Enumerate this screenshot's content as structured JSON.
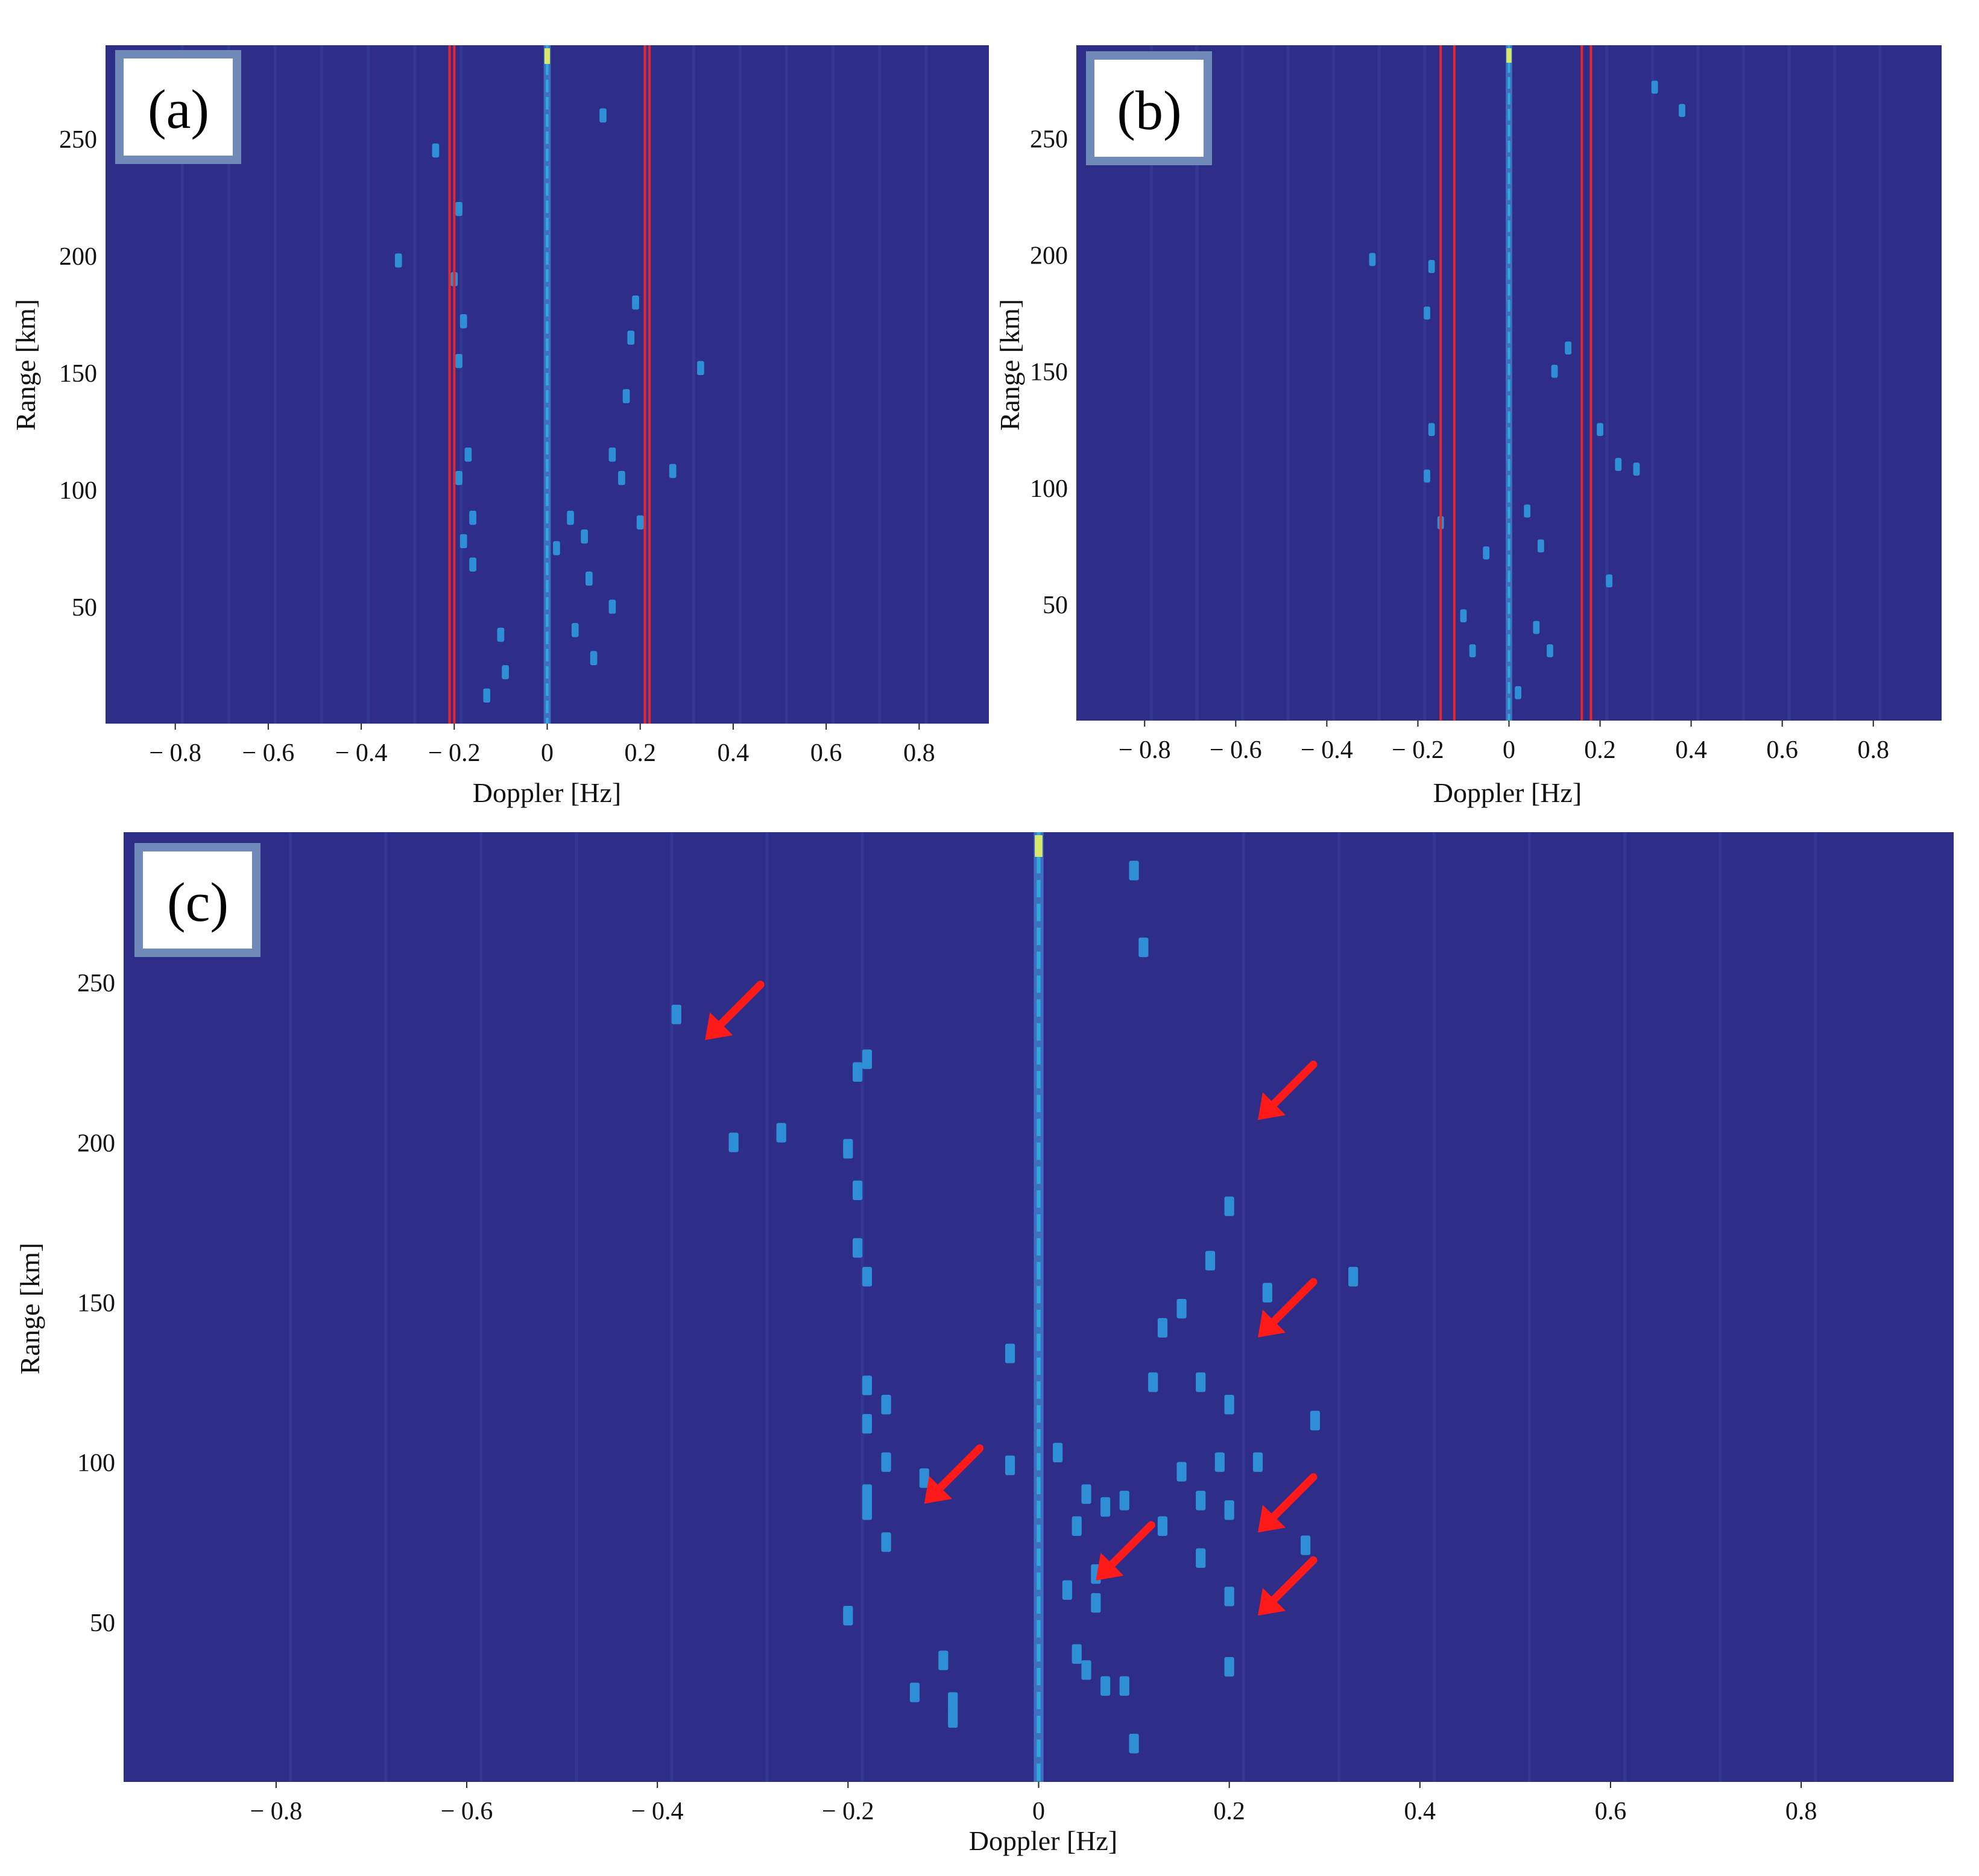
{
  "colors": {
    "background": "#2e2e88",
    "band_line": "#e8252b",
    "arrow": "#ff1a1a",
    "label_border": "#6f89b8",
    "zero_line": "#2ea9d9"
  },
  "chart_data": [
    {
      "type": "heatmap",
      "panel_label": "(a)",
      "xlabel": "Doppler [Hz]",
      "ylabel": "Range [km]",
      "xlim": [
        -0.95,
        0.95
      ],
      "ylim": [
        0,
        290
      ],
      "xticks": [
        -0.8,
        -0.6,
        -0.4,
        -0.2,
        0,
        0.2,
        0.4,
        0.6,
        0.8
      ],
      "xtick_labels": [
        "− 0.8",
        "− 0.6",
        "− 0.4",
        "− 0.2",
        "0",
        "0.2",
        "0.4",
        "0.6",
        "0.8"
      ],
      "yticks": [
        50,
        100,
        150,
        200,
        250
      ],
      "ytick_labels": [
        "50",
        "100",
        "150",
        "200",
        "250"
      ],
      "band_lines": [
        -0.21,
        -0.2,
        0.21,
        0.22
      ],
      "zero_line": 0,
      "spots": [
        [
          -0.19,
          220
        ],
        [
          -0.2,
          190
        ],
        [
          -0.18,
          172
        ],
        [
          -0.19,
          155
        ],
        [
          -0.17,
          115
        ],
        [
          -0.19,
          105
        ],
        [
          -0.16,
          88
        ],
        [
          -0.18,
          78
        ],
        [
          -0.16,
          68
        ],
        [
          -0.1,
          38
        ],
        [
          -0.09,
          22
        ],
        [
          -0.13,
          12
        ],
        [
          0.02,
          75
        ],
        [
          0.05,
          88
        ],
        [
          0.08,
          80
        ],
        [
          0.09,
          62
        ],
        [
          0.06,
          40
        ],
        [
          0.1,
          28
        ],
        [
          0.14,
          115
        ],
        [
          0.16,
          105
        ],
        [
          0.17,
          140
        ],
        [
          0.18,
          165
        ],
        [
          0.19,
          180
        ],
        [
          0.27,
          108
        ],
        [
          0.33,
          152
        ],
        [
          -0.32,
          198
        ],
        [
          0.12,
          260
        ],
        [
          -0.24,
          245
        ],
        [
          0.2,
          86
        ],
        [
          0.14,
          50
        ]
      ],
      "arrows": []
    },
    {
      "type": "heatmap",
      "panel_label": "(b)",
      "xlabel": "Doppler [Hz]",
      "ylabel": "Range [km]",
      "xlim": [
        -0.95,
        0.95
      ],
      "ylim": [
        0,
        290
      ],
      "xticks": [
        -0.8,
        -0.6,
        -0.4,
        -0.2,
        0,
        0.2,
        0.4,
        0.6,
        0.8
      ],
      "xtick_labels": [
        "− 0.8",
        "− 0.6",
        "− 0.4",
        "− 0.2",
        "0",
        "0.2",
        "0.4",
        "0.6",
        "0.8"
      ],
      "yticks": [
        50,
        100,
        150,
        200,
        250
      ],
      "ytick_labels": [
        "50",
        "100",
        "150",
        "200",
        "250"
      ],
      "band_lines": [
        -0.15,
        -0.12,
        0.16,
        0.18
      ],
      "zero_line": 0,
      "spots": [
        [
          -0.17,
          195
        ],
        [
          -0.18,
          175
        ],
        [
          -0.17,
          125
        ],
        [
          -0.18,
          105
        ],
        [
          -0.15,
          85
        ],
        [
          -0.1,
          45
        ],
        [
          -0.08,
          30
        ],
        [
          0.04,
          90
        ],
        [
          0.07,
          75
        ],
        [
          0.06,
          40
        ],
        [
          0.09,
          30
        ],
        [
          0.1,
          150
        ],
        [
          0.13,
          160
        ],
        [
          0.2,
          125
        ],
        [
          0.24,
          110
        ],
        [
          0.28,
          108
        ],
        [
          0.22,
          60
        ],
        [
          -0.3,
          198
        ],
        [
          0.38,
          262
        ],
        [
          0.32,
          272
        ],
        [
          -0.05,
          72
        ],
        [
          0.02,
          12
        ]
      ],
      "arrows": []
    },
    {
      "type": "heatmap",
      "panel_label": "(c)",
      "xlabel": "Doppler [Hz]",
      "ylabel": "Range [km]",
      "xlim": [
        -0.96,
        0.96
      ],
      "ylim": [
        0,
        297
      ],
      "xticks": [
        -0.8,
        -0.6,
        -0.4,
        -0.2,
        0,
        0.2,
        0.4,
        0.6,
        0.8
      ],
      "xtick_labels": [
        "− 0.8",
        "− 0.6",
        "− 0.4",
        "− 0.2",
        "0",
        "0.2",
        "0.4",
        "0.6",
        "0.8"
      ],
      "yticks": [
        50,
        100,
        150,
        200,
        250
      ],
      "ytick_labels": [
        "50",
        "100",
        "150",
        "200",
        "250"
      ],
      "band_lines": [],
      "zero_line": 0,
      "spots": [
        [
          -0.18,
          226
        ],
        [
          -0.19,
          222
        ],
        [
          -0.2,
          198
        ],
        [
          -0.19,
          185
        ],
        [
          -0.19,
          167
        ],
        [
          -0.18,
          158
        ],
        [
          -0.18,
          124
        ],
        [
          -0.16,
          118
        ],
        [
          -0.18,
          112
        ],
        [
          -0.16,
          100
        ],
        [
          -0.18,
          90
        ],
        [
          -0.18,
          85
        ],
        [
          -0.16,
          75
        ],
        [
          -0.2,
          52
        ],
        [
          -0.1,
          38
        ],
        [
          -0.09,
          25
        ],
        [
          -0.09,
          20
        ],
        [
          -0.13,
          28
        ],
        [
          -0.03,
          134
        ],
        [
          -0.03,
          99
        ],
        [
          0.02,
          103
        ],
        [
          0.05,
          90
        ],
        [
          0.07,
          86
        ],
        [
          0.09,
          88
        ],
        [
          0.04,
          80
        ],
        [
          0.06,
          65
        ],
        [
          0.04,
          40
        ],
        [
          0.05,
          35
        ],
        [
          0.07,
          30
        ],
        [
          0.09,
          30
        ],
        [
          0.1,
          12
        ],
        [
          0.13,
          142
        ],
        [
          0.12,
          125
        ],
        [
          0.15,
          148
        ],
        [
          0.13,
          80
        ],
        [
          0.17,
          88
        ],
        [
          0.17,
          125
        ],
        [
          0.2,
          118
        ],
        [
          0.19,
          100
        ],
        [
          0.2,
          85
        ],
        [
          0.17,
          70
        ],
        [
          0.2,
          58
        ],
        [
          0.23,
          100
        ],
        [
          0.29,
          113
        ],
        [
          0.28,
          74
        ],
        [
          0.33,
          158
        ],
        [
          0.18,
          163
        ],
        [
          0.2,
          180
        ],
        [
          0.24,
          153
        ],
        [
          0.1,
          285
        ],
        [
          0.11,
          261
        ],
        [
          -0.32,
          200
        ],
        [
          -0.27,
          203
        ],
        [
          -0.38,
          240
        ],
        [
          -0.12,
          95
        ],
        [
          0.06,
          56
        ],
        [
          0.15,
          97
        ],
        [
          0.2,
          36
        ],
        [
          0.03,
          60
        ]
      ],
      "arrows": [
        [
          -0.35,
          232
        ],
        [
          0.23,
          207
        ],
        [
          0.23,
          139
        ],
        [
          -0.12,
          87
        ],
        [
          0.06,
          63
        ],
        [
          0.23,
          78
        ],
        [
          0.23,
          52
        ]
      ]
    }
  ]
}
